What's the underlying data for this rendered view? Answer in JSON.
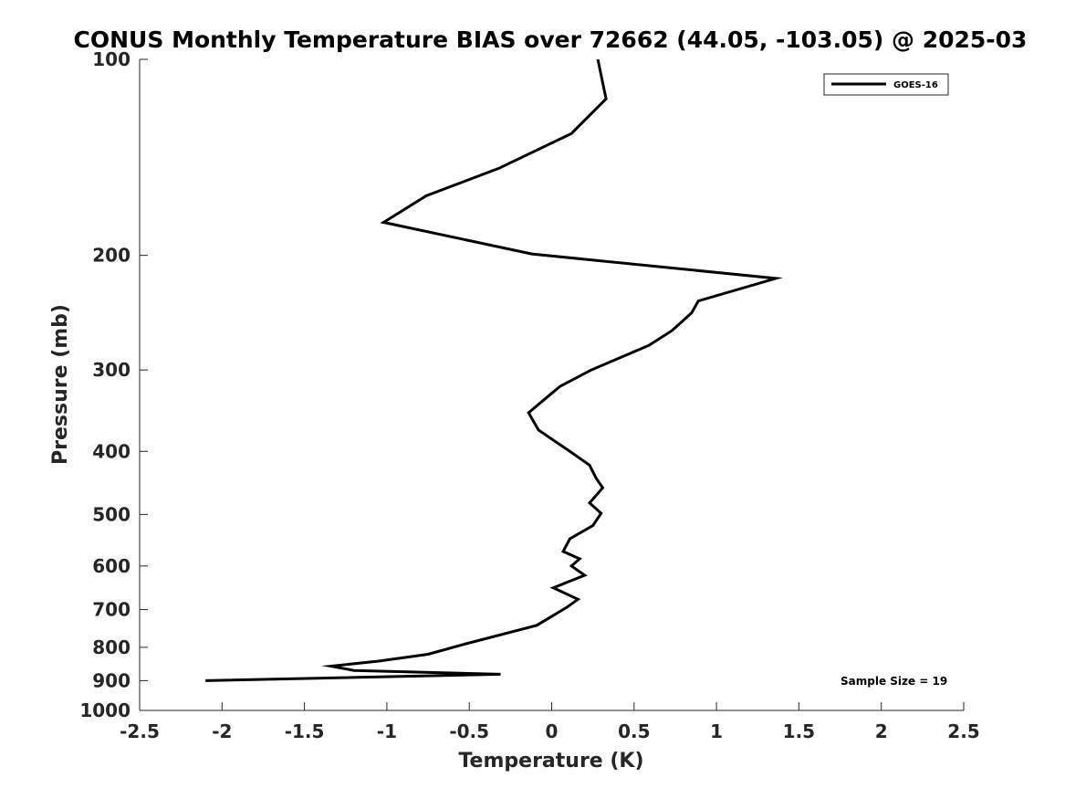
{
  "chart_data": {
    "type": "line",
    "title": "CONUS Monthly Temperature BIAS over 72662 (44.05, -103.05) @ 2025-03",
    "xlabel": "Temperature (K)",
    "ylabel": "Pressure (mb)",
    "xlim": [
      -2.5,
      2.5
    ],
    "ylim": [
      100,
      1000
    ],
    "yscale": "log",
    "y_reversed": true,
    "grid": false,
    "legend_position": "top-right",
    "x_ticks": [
      -2.5,
      -2,
      -1.5,
      -1,
      -0.5,
      0,
      0.5,
      1,
      1.5,
      2,
      2.5
    ],
    "x_tick_labels": [
      "-2.5",
      "-2",
      "-1.5",
      "-1",
      "-0.5",
      "0",
      "0.5",
      "1",
      "1.5",
      "2",
      "2.5"
    ],
    "y_ticks": [
      100,
      200,
      300,
      400,
      500,
      600,
      700,
      800,
      900,
      1000
    ],
    "y_tick_labels": [
      "100",
      "200",
      "300",
      "400",
      "500",
      "600",
      "700",
      "800",
      "900",
      "1000"
    ],
    "series": [
      {
        "name": "GOES-16",
        "color": "#000000",
        "x": [
          0.28,
          0.33,
          0.12,
          -0.32,
          -0.76,
          -1.02,
          -0.12,
          1.36,
          0.89,
          0.85,
          0.73,
          0.59,
          0.24,
          0.05,
          -0.14,
          -0.08,
          0.11,
          0.23,
          0.27,
          0.31,
          0.23,
          0.3,
          0.25,
          0.11,
          0.07,
          0.17,
          0.12,
          0.2,
          0.01,
          0.16,
          0.09,
          -0.09,
          -0.52,
          -0.75,
          -1.05,
          -1.34,
          -1.2,
          -0.31,
          -2.1
        ],
        "y": [
          100,
          115,
          130,
          147,
          162,
          178,
          199,
          217,
          235,
          245,
          261,
          275,
          300,
          318,
          349,
          371,
          400,
          420,
          440,
          455,
          480,
          498,
          520,
          545,
          570,
          585,
          600,
          620,
          648,
          675,
          695,
          740,
          790,
          820,
          840,
          855,
          868,
          880,
          900
        ]
      }
    ],
    "annotations": [
      "Sample Size = 19"
    ]
  }
}
